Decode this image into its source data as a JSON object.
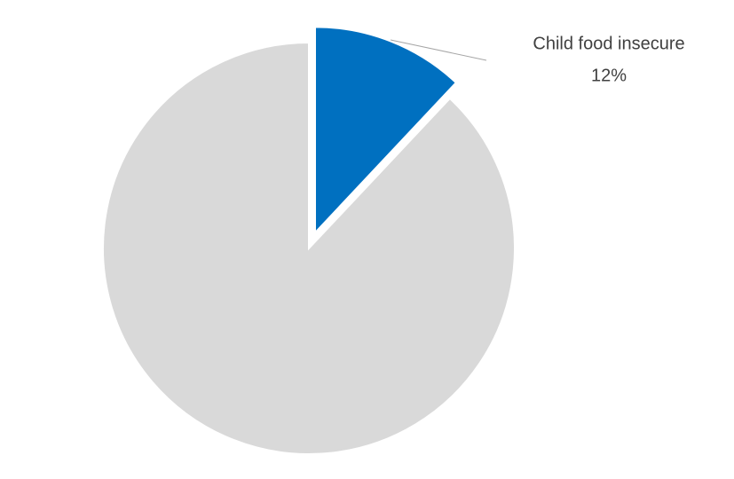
{
  "chart_data": {
    "type": "pie",
    "categories": [
      "Child food insecure",
      null
    ],
    "values": [
      12,
      88
    ],
    "value_labels": [
      "12%",
      null
    ],
    "colors": [
      "#0070c0",
      "#d9d9d9"
    ]
  }
}
